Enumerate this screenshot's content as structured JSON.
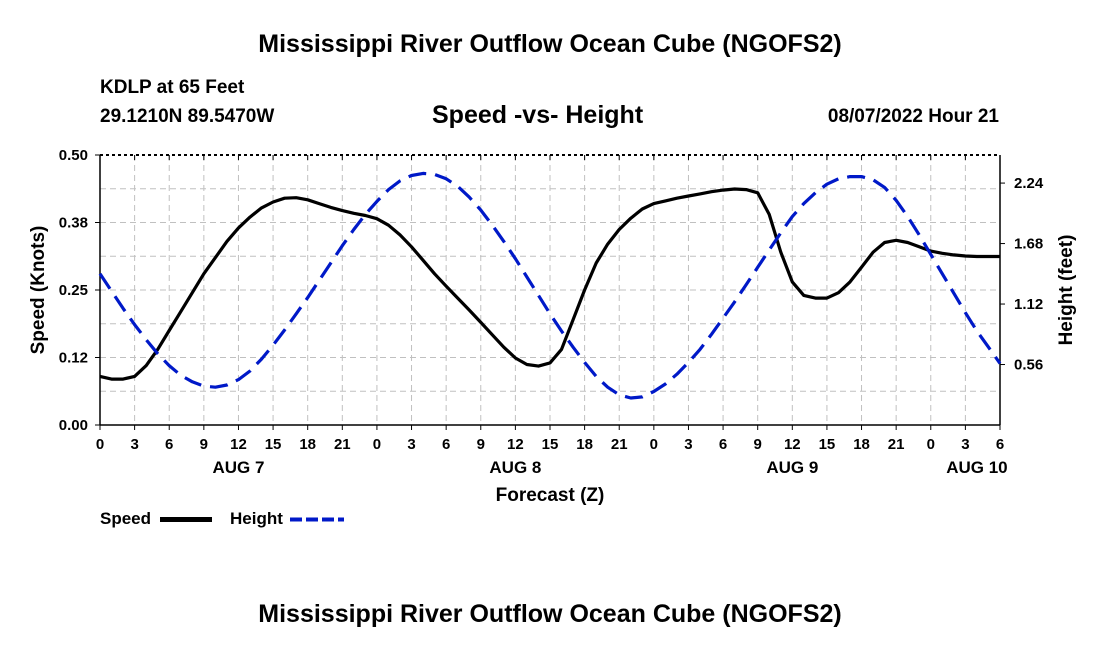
{
  "header": {
    "title": "Mississippi River Outflow Ocean Cube (NGOFS2)",
    "station": "KDLP at 65 Feet",
    "coords": "29.1210N  89.5470W",
    "subtitle": "Speed -vs- Height",
    "datetime": "08/07/2022 Hour 21"
  },
  "footer": {
    "title": "Mississippi River Outflow Ocean Cube (NGOFS2)"
  },
  "legend": {
    "items": [
      {
        "label": "Speed",
        "color": "#000000",
        "style": "solid"
      },
      {
        "label": "Height",
        "color": "#0019c8",
        "style": "dashed"
      }
    ]
  },
  "chart_data": {
    "type": "line",
    "title": "Speed -vs- Height",
    "xlabel": "Forecast (Z)",
    "ylabel": "Speed (Knots)",
    "y2label": "Height (feet)",
    "x_unit": "hours from AUG 7 00Z",
    "xlim": [
      0,
      78
    ],
    "ylim": [
      0,
      0.5
    ],
    "y2lim": [
      0.0,
      2.5
    ],
    "x_ticks": [
      {
        "x": 0,
        "label": "0"
      },
      {
        "x": 3,
        "label": "3"
      },
      {
        "x": 6,
        "label": "6"
      },
      {
        "x": 9,
        "label": "9"
      },
      {
        "x": 12,
        "label": "12"
      },
      {
        "x": 15,
        "label": "15"
      },
      {
        "x": 18,
        "label": "18"
      },
      {
        "x": 21,
        "label": "21"
      },
      {
        "x": 24,
        "label": "0"
      },
      {
        "x": 27,
        "label": "3"
      },
      {
        "x": 30,
        "label": "6"
      },
      {
        "x": 33,
        "label": "9"
      },
      {
        "x": 36,
        "label": "12"
      },
      {
        "x": 39,
        "label": "15"
      },
      {
        "x": 42,
        "label": "18"
      },
      {
        "x": 45,
        "label": "21"
      },
      {
        "x": 48,
        "label": "0"
      },
      {
        "x": 51,
        "label": "3"
      },
      {
        "x": 54,
        "label": "6"
      },
      {
        "x": 57,
        "label": "9"
      },
      {
        "x": 60,
        "label": "12"
      },
      {
        "x": 63,
        "label": "15"
      },
      {
        "x": 66,
        "label": "18"
      },
      {
        "x": 69,
        "label": "21"
      },
      {
        "x": 72,
        "label": "0"
      },
      {
        "x": 75,
        "label": "3"
      },
      {
        "x": 78,
        "label": "6"
      }
    ],
    "date_labels": [
      {
        "x": 12,
        "label": "AUG 7"
      },
      {
        "x": 36,
        "label": "AUG 8"
      },
      {
        "x": 60,
        "label": "AUG 9"
      },
      {
        "x": 76,
        "label": "AUG 10"
      }
    ],
    "y_ticks": [
      {
        "v": 0.0,
        "label": "0.00"
      },
      {
        "v": 0.125,
        "label": "0.12"
      },
      {
        "v": 0.25,
        "label": "0.25"
      },
      {
        "v": 0.375,
        "label": "0.38"
      },
      {
        "v": 0.5,
        "label": "0.50"
      }
    ],
    "y2_ticks": [
      {
        "v": 0.56,
        "label": "0.56"
      },
      {
        "v": 1.12,
        "label": "1.12"
      },
      {
        "v": 1.68,
        "label": "1.68"
      },
      {
        "v": 2.24,
        "label": "2.24"
      }
    ],
    "grid": true,
    "series": [
      {
        "name": "Speed",
        "axis": "left",
        "color": "#000000",
        "dash": "",
        "x": [
          0,
          1,
          2,
          3,
          4,
          5,
          6,
          7,
          8,
          9,
          10,
          11,
          12,
          13,
          14,
          15,
          16,
          17,
          18,
          19,
          20,
          21,
          22,
          23,
          24,
          25,
          26,
          27,
          28,
          29,
          30,
          31,
          32,
          33,
          34,
          35,
          36,
          37,
          38,
          39,
          40,
          41,
          42,
          43,
          44,
          45,
          46,
          47,
          48,
          49,
          50,
          51,
          52,
          53,
          54,
          55,
          56,
          57,
          58,
          59,
          60,
          61,
          62,
          63,
          64,
          65,
          66,
          67,
          68,
          69,
          70,
          71,
          72,
          73,
          74,
          75,
          76,
          77,
          78
        ],
        "values": [
          0.09,
          0.085,
          0.085,
          0.09,
          0.11,
          0.14,
          0.175,
          0.21,
          0.245,
          0.28,
          0.31,
          0.34,
          0.365,
          0.385,
          0.402,
          0.413,
          0.42,
          0.421,
          0.417,
          0.41,
          0.403,
          0.397,
          0.392,
          0.388,
          0.382,
          0.37,
          0.352,
          0.33,
          0.305,
          0.28,
          0.257,
          0.235,
          0.213,
          0.19,
          0.167,
          0.144,
          0.124,
          0.112,
          0.109,
          0.115,
          0.14,
          0.195,
          0.25,
          0.3,
          0.335,
          0.362,
          0.383,
          0.4,
          0.41,
          0.415,
          0.42,
          0.424,
          0.428,
          0.432,
          0.435,
          0.437,
          0.436,
          0.43,
          0.39,
          0.32,
          0.265,
          0.24,
          0.235,
          0.235,
          0.245,
          0.265,
          0.292,
          0.32,
          0.338,
          0.342,
          0.338,
          0.33,
          0.322,
          0.318,
          0.315,
          0.313,
          0.312,
          0.312,
          0.312
        ]
      },
      {
        "name": "Height",
        "axis": "right",
        "color": "#0019c8",
        "dash": "18 9",
        "x": [
          0,
          1,
          2,
          3,
          4,
          5,
          6,
          7,
          8,
          9,
          10,
          11,
          12,
          13,
          14,
          15,
          16,
          17,
          18,
          19,
          20,
          21,
          22,
          23,
          24,
          25,
          26,
          27,
          28,
          29,
          30,
          31,
          32,
          33,
          34,
          35,
          36,
          37,
          38,
          39,
          40,
          41,
          42,
          43,
          44,
          45,
          46,
          47,
          48,
          49,
          50,
          51,
          52,
          53,
          54,
          55,
          56,
          57,
          58,
          59,
          60,
          61,
          62,
          63,
          64,
          65,
          66,
          67,
          68,
          69,
          70,
          71,
          72,
          73,
          74,
          75,
          76,
          77,
          78
        ],
        "values": [
          1.4,
          1.24,
          1.08,
          0.93,
          0.79,
          0.66,
          0.55,
          0.46,
          0.4,
          0.36,
          0.35,
          0.37,
          0.42,
          0.5,
          0.61,
          0.74,
          0.88,
          1.03,
          1.18,
          1.34,
          1.5,
          1.66,
          1.81,
          1.95,
          2.07,
          2.18,
          2.26,
          2.31,
          2.33,
          2.32,
          2.28,
          2.21,
          2.11,
          1.99,
          1.85,
          1.7,
          1.54,
          1.37,
          1.2,
          1.03,
          0.87,
          0.72,
          0.58,
          0.45,
          0.35,
          0.28,
          0.25,
          0.26,
          0.31,
          0.38,
          0.47,
          0.58,
          0.7,
          0.84,
          0.99,
          1.14,
          1.3,
          1.46,
          1.62,
          1.78,
          1.93,
          2.05,
          2.15,
          2.23,
          2.28,
          2.3,
          2.3,
          2.27,
          2.2,
          2.08,
          1.93,
          1.76,
          1.58,
          1.4,
          1.22,
          1.04,
          0.87,
          0.72,
          0.57
        ]
      }
    ]
  }
}
